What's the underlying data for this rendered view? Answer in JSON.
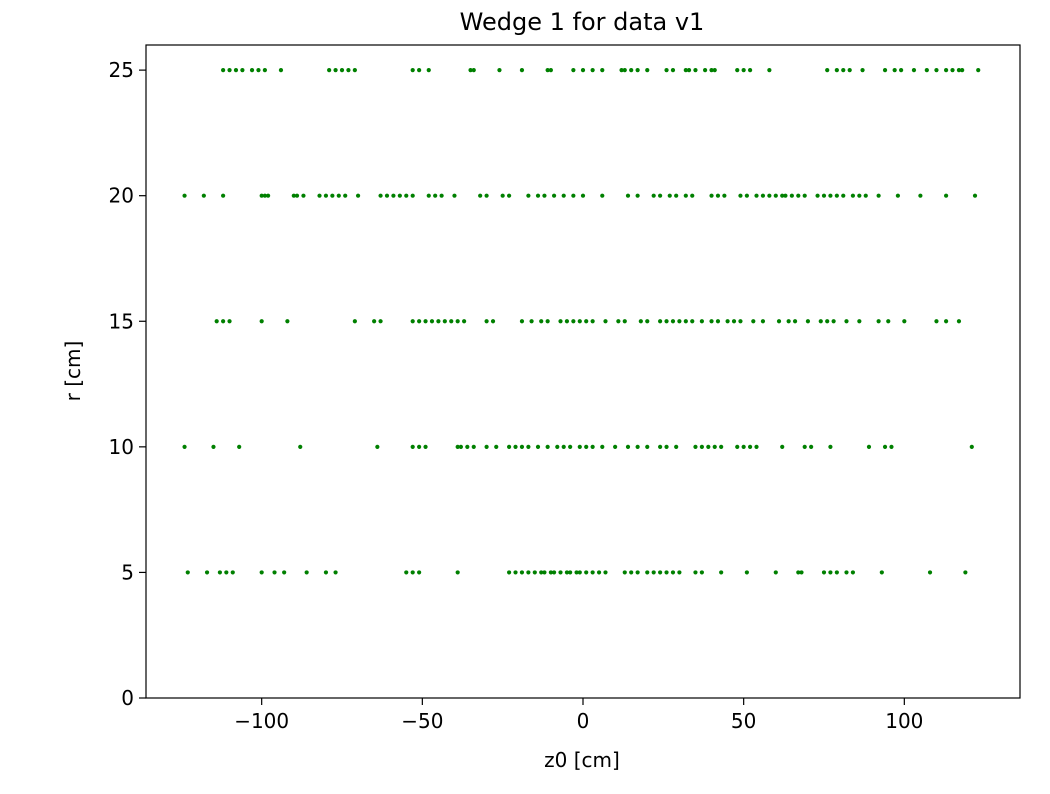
{
  "chart_data": {
    "type": "scatter",
    "title": "Wedge 1 for data v1",
    "xlabel": "z0 [cm]",
    "ylabel": "r [cm]",
    "xlim": [
      -136,
      136
    ],
    "ylim": [
      0,
      26
    ],
    "xticks": [
      -100,
      -50,
      0,
      50,
      100
    ],
    "xtick_labels": [
      "−100",
      "−50",
      "0",
      "50",
      "100"
    ],
    "yticks": [
      0,
      5,
      10,
      15,
      20,
      25
    ],
    "ytick_labels": [
      "0",
      "5",
      "10",
      "15",
      "20",
      "25"
    ],
    "grid": false,
    "marker_color": "#008000",
    "series": [
      {
        "points": [
          [
            -112,
            25
          ],
          [
            -110,
            25
          ],
          [
            -108,
            25
          ],
          [
            -106,
            25
          ],
          [
            -103,
            25
          ],
          [
            -101,
            25
          ],
          [
            -99,
            25
          ],
          [
            -94,
            25
          ],
          [
            -79,
            25
          ],
          [
            -77,
            25
          ],
          [
            -75,
            25
          ],
          [
            -73,
            25
          ],
          [
            -71,
            25
          ],
          [
            -53,
            25
          ],
          [
            -51,
            25
          ],
          [
            -48,
            25
          ],
          [
            -35,
            25
          ],
          [
            -34,
            25
          ],
          [
            -26,
            25
          ],
          [
            -19,
            25
          ],
          [
            -11,
            25
          ],
          [
            -10,
            25
          ],
          [
            -3,
            25
          ],
          [
            0,
            25
          ],
          [
            3,
            25
          ],
          [
            6,
            25
          ],
          [
            12,
            25
          ],
          [
            13,
            25
          ],
          [
            15,
            25
          ],
          [
            17,
            25
          ],
          [
            20,
            25
          ],
          [
            26,
            25
          ],
          [
            28,
            25
          ],
          [
            32,
            25
          ],
          [
            33,
            25
          ],
          [
            35,
            25
          ],
          [
            38,
            25
          ],
          [
            40,
            25
          ],
          [
            41,
            25
          ],
          [
            48,
            25
          ],
          [
            50,
            25
          ],
          [
            52,
            25
          ],
          [
            58,
            25
          ],
          [
            76,
            25
          ],
          [
            79,
            25
          ],
          [
            81,
            25
          ],
          [
            83,
            25
          ],
          [
            87,
            25
          ],
          [
            94,
            25
          ],
          [
            97,
            25
          ],
          [
            99,
            25
          ],
          [
            103,
            25
          ],
          [
            107,
            25
          ],
          [
            110,
            25
          ],
          [
            113,
            25
          ],
          [
            115,
            25
          ],
          [
            117,
            25
          ],
          [
            118,
            25
          ],
          [
            123,
            25
          ],
          [
            -124,
            20
          ],
          [
            -118,
            20
          ],
          [
            -112,
            20
          ],
          [
            -100,
            20
          ],
          [
            -99,
            20
          ],
          [
            -98,
            20
          ],
          [
            -90,
            20
          ],
          [
            -89,
            20
          ],
          [
            -87,
            20
          ],
          [
            -82,
            20
          ],
          [
            -80,
            20
          ],
          [
            -78,
            20
          ],
          [
            -76,
            20
          ],
          [
            -74,
            20
          ],
          [
            -70,
            20
          ],
          [
            -63,
            20
          ],
          [
            -61,
            20
          ],
          [
            -59,
            20
          ],
          [
            -57,
            20
          ],
          [
            -55,
            20
          ],
          [
            -53,
            20
          ],
          [
            -48,
            20
          ],
          [
            -46,
            20
          ],
          [
            -44,
            20
          ],
          [
            -40,
            20
          ],
          [
            -32,
            20
          ],
          [
            -30,
            20
          ],
          [
            -25,
            20
          ],
          [
            -23,
            20
          ],
          [
            -17,
            20
          ],
          [
            -14,
            20
          ],
          [
            -12,
            20
          ],
          [
            -9,
            20
          ],
          [
            -6,
            20
          ],
          [
            -3,
            20
          ],
          [
            0,
            20
          ],
          [
            6,
            20
          ],
          [
            14,
            20
          ],
          [
            17,
            20
          ],
          [
            22,
            20
          ],
          [
            24,
            20
          ],
          [
            27,
            20
          ],
          [
            29,
            20
          ],
          [
            32,
            20
          ],
          [
            34,
            20
          ],
          [
            40,
            20
          ],
          [
            42,
            20
          ],
          [
            44,
            20
          ],
          [
            49,
            20
          ],
          [
            51,
            20
          ],
          [
            54,
            20
          ],
          [
            56,
            20
          ],
          [
            58,
            20
          ],
          [
            60,
            20
          ],
          [
            62,
            20
          ],
          [
            63,
            20
          ],
          [
            65,
            20
          ],
          [
            67,
            20
          ],
          [
            69,
            20
          ],
          [
            73,
            20
          ],
          [
            75,
            20
          ],
          [
            77,
            20
          ],
          [
            79,
            20
          ],
          [
            81,
            20
          ],
          [
            84,
            20
          ],
          [
            86,
            20
          ],
          [
            88,
            20
          ],
          [
            92,
            20
          ],
          [
            98,
            20
          ],
          [
            105,
            20
          ],
          [
            113,
            20
          ],
          [
            122,
            20
          ],
          [
            -114,
            15
          ],
          [
            -112,
            15
          ],
          [
            -110,
            15
          ],
          [
            -100,
            15
          ],
          [
            -92,
            15
          ],
          [
            -71,
            15
          ],
          [
            -65,
            15
          ],
          [
            -63,
            15
          ],
          [
            -53,
            15
          ],
          [
            -51,
            15
          ],
          [
            -49,
            15
          ],
          [
            -47,
            15
          ],
          [
            -45,
            15
          ],
          [
            -43,
            15
          ],
          [
            -41,
            15
          ],
          [
            -39,
            15
          ],
          [
            -37,
            15
          ],
          [
            -30,
            15
          ],
          [
            -28,
            15
          ],
          [
            -19,
            15
          ],
          [
            -16,
            15
          ],
          [
            -13,
            15
          ],
          [
            -11,
            15
          ],
          [
            -7,
            15
          ],
          [
            -5,
            15
          ],
          [
            -3,
            15
          ],
          [
            -1,
            15
          ],
          [
            1,
            15
          ],
          [
            3,
            15
          ],
          [
            7,
            15
          ],
          [
            11,
            15
          ],
          [
            13,
            15
          ],
          [
            18,
            15
          ],
          [
            20,
            15
          ],
          [
            24,
            15
          ],
          [
            26,
            15
          ],
          [
            28,
            15
          ],
          [
            30,
            15
          ],
          [
            32,
            15
          ],
          [
            34,
            15
          ],
          [
            37,
            15
          ],
          [
            40,
            15
          ],
          [
            42,
            15
          ],
          [
            45,
            15
          ],
          [
            47,
            15
          ],
          [
            49,
            15
          ],
          [
            53,
            15
          ],
          [
            56,
            15
          ],
          [
            61,
            15
          ],
          [
            64,
            15
          ],
          [
            66,
            15
          ],
          [
            70,
            15
          ],
          [
            74,
            15
          ],
          [
            76,
            15
          ],
          [
            78,
            15
          ],
          [
            82,
            15
          ],
          [
            86,
            15
          ],
          [
            92,
            15
          ],
          [
            95,
            15
          ],
          [
            100,
            15
          ],
          [
            110,
            15
          ],
          [
            113,
            15
          ],
          [
            117,
            15
          ],
          [
            -124,
            10
          ],
          [
            -115,
            10
          ],
          [
            -107,
            10
          ],
          [
            -88,
            10
          ],
          [
            -64,
            10
          ],
          [
            -53,
            10
          ],
          [
            -51,
            10
          ],
          [
            -49,
            10
          ],
          [
            -39,
            10
          ],
          [
            -38,
            10
          ],
          [
            -36,
            10
          ],
          [
            -34,
            10
          ],
          [
            -30,
            10
          ],
          [
            -27,
            10
          ],
          [
            -23,
            10
          ],
          [
            -21,
            10
          ],
          [
            -19,
            10
          ],
          [
            -17,
            10
          ],
          [
            -14,
            10
          ],
          [
            -11,
            10
          ],
          [
            -8,
            10
          ],
          [
            -6,
            10
          ],
          [
            -4,
            10
          ],
          [
            -1,
            10
          ],
          [
            1,
            10
          ],
          [
            3,
            10
          ],
          [
            6,
            10
          ],
          [
            10,
            10
          ],
          [
            14,
            10
          ],
          [
            17,
            10
          ],
          [
            20,
            10
          ],
          [
            24,
            10
          ],
          [
            26,
            10
          ],
          [
            29,
            10
          ],
          [
            35,
            10
          ],
          [
            37,
            10
          ],
          [
            39,
            10
          ],
          [
            41,
            10
          ],
          [
            43,
            10
          ],
          [
            48,
            10
          ],
          [
            50,
            10
          ],
          [
            52,
            10
          ],
          [
            54,
            10
          ],
          [
            62,
            10
          ],
          [
            69,
            10
          ],
          [
            71,
            10
          ],
          [
            77,
            10
          ],
          [
            89,
            10
          ],
          [
            94,
            10
          ],
          [
            96,
            10
          ],
          [
            121,
            10
          ],
          [
            -123,
            5
          ],
          [
            -117,
            5
          ],
          [
            -113,
            5
          ],
          [
            -111,
            5
          ],
          [
            -109,
            5
          ],
          [
            -100,
            5
          ],
          [
            -96,
            5
          ],
          [
            -93,
            5
          ],
          [
            -86,
            5
          ],
          [
            -80,
            5
          ],
          [
            -77,
            5
          ],
          [
            -55,
            5
          ],
          [
            -53,
            5
          ],
          [
            -51,
            5
          ],
          [
            -39,
            5
          ],
          [
            -23,
            5
          ],
          [
            -21,
            5
          ],
          [
            -19,
            5
          ],
          [
            -17,
            5
          ],
          [
            -15,
            5
          ],
          [
            -13,
            5
          ],
          [
            -12,
            5
          ],
          [
            -10,
            5
          ],
          [
            -9,
            5
          ],
          [
            -7,
            5
          ],
          [
            -5,
            5
          ],
          [
            -4,
            5
          ],
          [
            -2,
            5
          ],
          [
            -1,
            5
          ],
          [
            1,
            5
          ],
          [
            3,
            5
          ],
          [
            5,
            5
          ],
          [
            7,
            5
          ],
          [
            13,
            5
          ],
          [
            15,
            5
          ],
          [
            17,
            5
          ],
          [
            20,
            5
          ],
          [
            22,
            5
          ],
          [
            24,
            5
          ],
          [
            26,
            5
          ],
          [
            28,
            5
          ],
          [
            30,
            5
          ],
          [
            35,
            5
          ],
          [
            37,
            5
          ],
          [
            43,
            5
          ],
          [
            51,
            5
          ],
          [
            60,
            5
          ],
          [
            67,
            5
          ],
          [
            68,
            5
          ],
          [
            75,
            5
          ],
          [
            77,
            5
          ],
          [
            79,
            5
          ],
          [
            82,
            5
          ],
          [
            84,
            5
          ],
          [
            93,
            5
          ],
          [
            108,
            5
          ],
          [
            119,
            5
          ]
        ]
      }
    ]
  }
}
